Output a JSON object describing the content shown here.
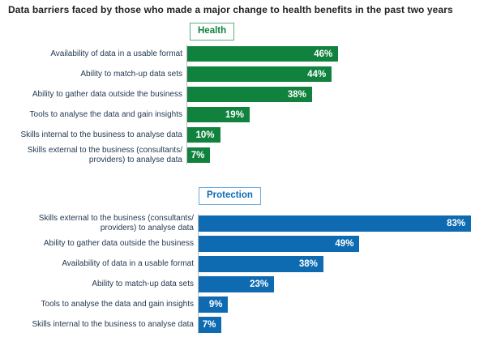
{
  "title": "Data barriers faced by those who made a major change to health benefits in the past two years",
  "colors": {
    "title": "#231f20",
    "label": "#243a52",
    "axis": "#b8bcc2",
    "health": "#10823E",
    "health-border": "#5fae80",
    "protection": "#0E6AB1",
    "protection-border": "#6aa9dc"
  },
  "chart_data": [
    {
      "type": "bar",
      "orientation": "horizontal",
      "group": "Health",
      "bar_color": "#10823E",
      "unit": "%",
      "xlim": [
        0,
        100
      ],
      "grid": false,
      "value_labels": "inside-end-white",
      "categories": [
        "Availability of data in a usable format",
        "Ability to match-up data sets",
        "Ability to gather data outside the business",
        "Tools to analyse the data and gain insights",
        "Skills internal to the business to analyse data",
        "Skills external to the business (consultants/\nproviders) to analyse data"
      ],
      "values": [
        46,
        44,
        38,
        19,
        10,
        7
      ],
      "value_label_texts": [
        "46%",
        "44%",
        "38%",
        "19%",
        "10%",
        "7%"
      ]
    },
    {
      "type": "bar",
      "orientation": "horizontal",
      "group": "Protection",
      "bar_color": "#0E6AB1",
      "unit": "%",
      "xlim": [
        0,
        100
      ],
      "grid": false,
      "value_labels": "inside-end-white",
      "categories": [
        "Skills external to the business (consultants/\nproviders) to analyse data",
        "Ability to gather data outside the business",
        "Availability of data in a usable format",
        "Ability to match-up data sets",
        "Tools to analyse the data and gain insights",
        "Skills internal to the business to analyse data"
      ],
      "values": [
        83,
        49,
        38,
        23,
        9,
        7
      ],
      "value_label_texts": [
        "83%",
        "49%",
        "38%",
        "23%",
        "9%",
        "7%"
      ]
    }
  ]
}
